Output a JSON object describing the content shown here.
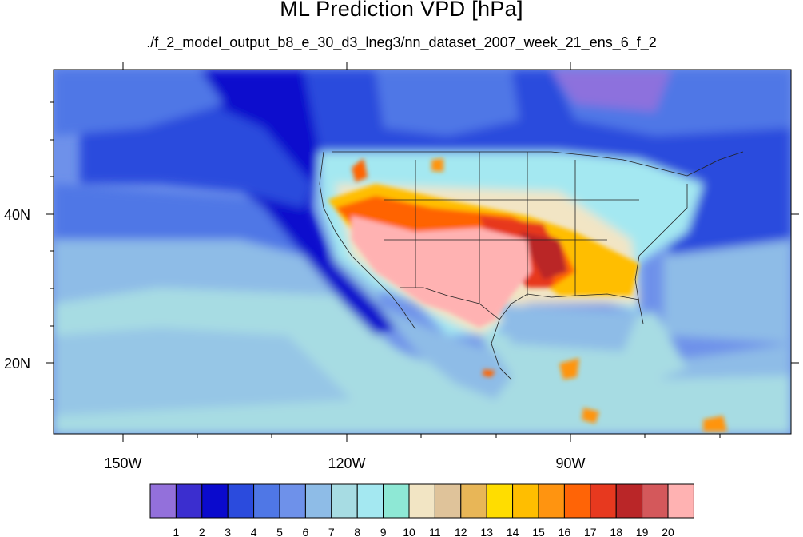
{
  "title": "ML Prediction VPD [hPa]",
  "subtitle": "./f_2_model_output_b8_e_30_d3_lneg3/nn_dataset_2007_week_21_ens_6_f_2",
  "map": {
    "lon_ticks": [
      "150W",
      "120W",
      "90W"
    ],
    "lat_ticks": [
      "40N",
      "20N"
    ]
  },
  "colorbar": {
    "labels": [
      "1",
      "2",
      "3",
      "4",
      "5",
      "6",
      "7",
      "8",
      "9",
      "10",
      "11",
      "12",
      "13",
      "14",
      "15",
      "16",
      "17",
      "18",
      "19",
      "20"
    ],
    "colors": [
      "#9370DB",
      "#3B2ECF",
      "#0A0ACD",
      "#2B4BDD",
      "#4F77E6",
      "#6E91EA",
      "#8EBCE7",
      "#A7DCE3",
      "#A4E8F1",
      "#8EE8D5",
      "#F2E5C4",
      "#DFC39A",
      "#E8B657",
      "#FFDD00",
      "#FFBE00",
      "#FF9410",
      "#FF6406",
      "#E7391F",
      "#BA2628",
      "#D4585B",
      "#FFB2B2"
    ]
  }
}
